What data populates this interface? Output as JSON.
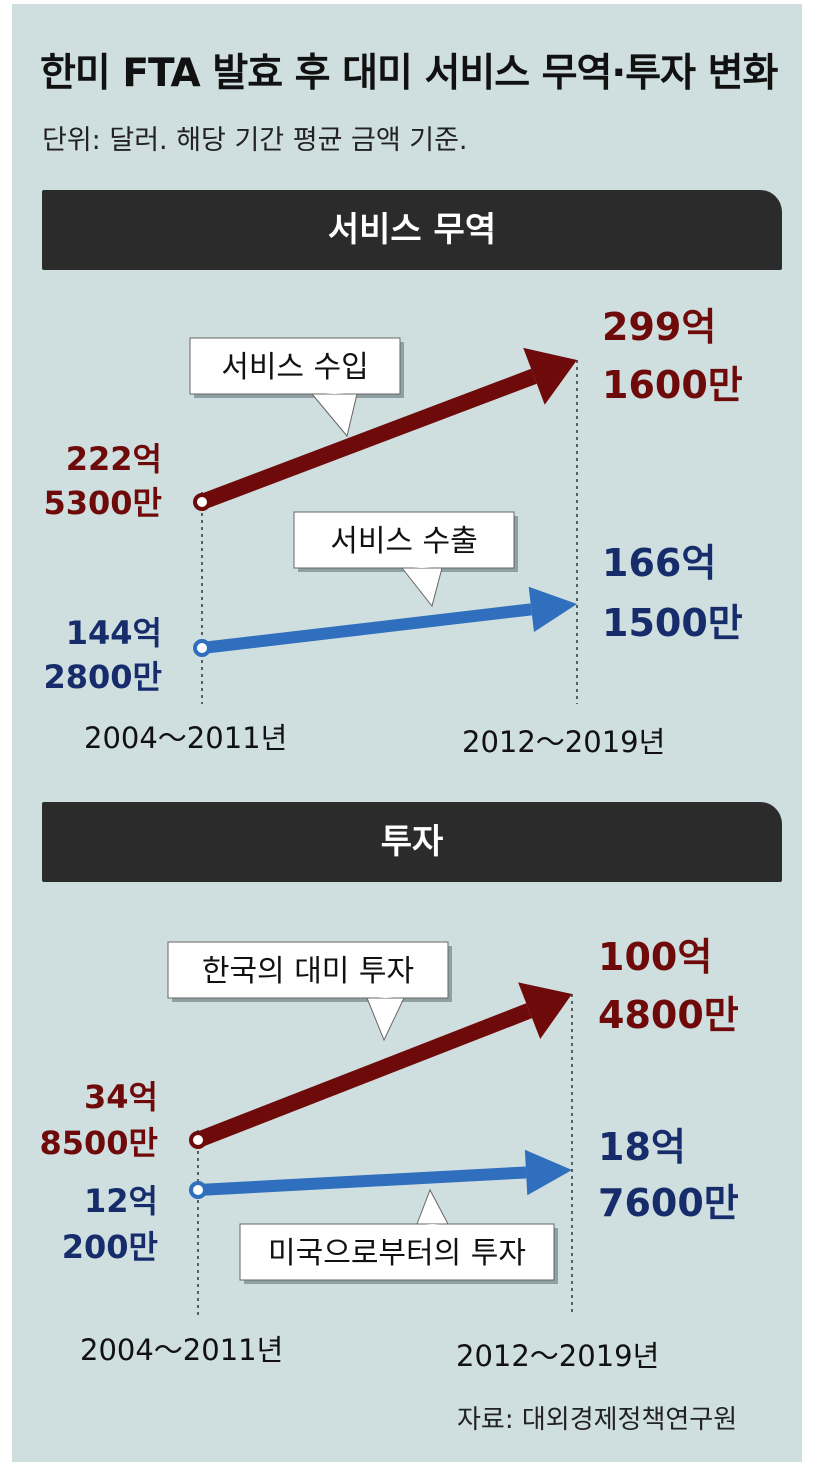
{
  "title": "한미 FTA 발효 후 대미 서비스 무역·투자 변화",
  "subtitle": "단위: 달러. 해당 기간 평균 금액 기준.",
  "source": "자료: 대외경제정책연구원",
  "colors": {
    "red": "#6e0a0a",
    "blue": "#2f6fbd",
    "navy": "#172c6a",
    "bg": "#cfdedf",
    "banner": "#2b2b2b"
  },
  "chart_data": [
    {
      "type": "line",
      "title": "서비스 무역",
      "categories": [
        "2004～2011년",
        "2012～2019년"
      ],
      "series": [
        {
          "name": "서비스 수입",
          "values": [
            22253000000,
            29916000000
          ],
          "labels": [
            [
              "222억",
              "5300만"
            ],
            [
              "299억",
              "1600만"
            ]
          ]
        },
        {
          "name": "서비스 수출",
          "values": [
            14428000000,
            16615000000
          ],
          "labels": [
            [
              "144억",
              "2800만"
            ],
            [
              "166억",
              "1500만"
            ]
          ]
        }
      ]
    },
    {
      "type": "line",
      "title": "투자",
      "categories": [
        "2004～2011년",
        "2012～2019년"
      ],
      "series": [
        {
          "name": "한국의 대미 투자",
          "values": [
            3485000000,
            10048000000
          ],
          "labels": [
            [
              "34억",
              "8500만"
            ],
            [
              "100억",
              "4800만"
            ]
          ]
        },
        {
          "name": "미국으로부터의 투자",
          "values": [
            1202000000,
            1876000000
          ],
          "labels": [
            [
              "12억",
              "200만"
            ],
            [
              "18억",
              "7600만"
            ]
          ]
        }
      ]
    }
  ]
}
